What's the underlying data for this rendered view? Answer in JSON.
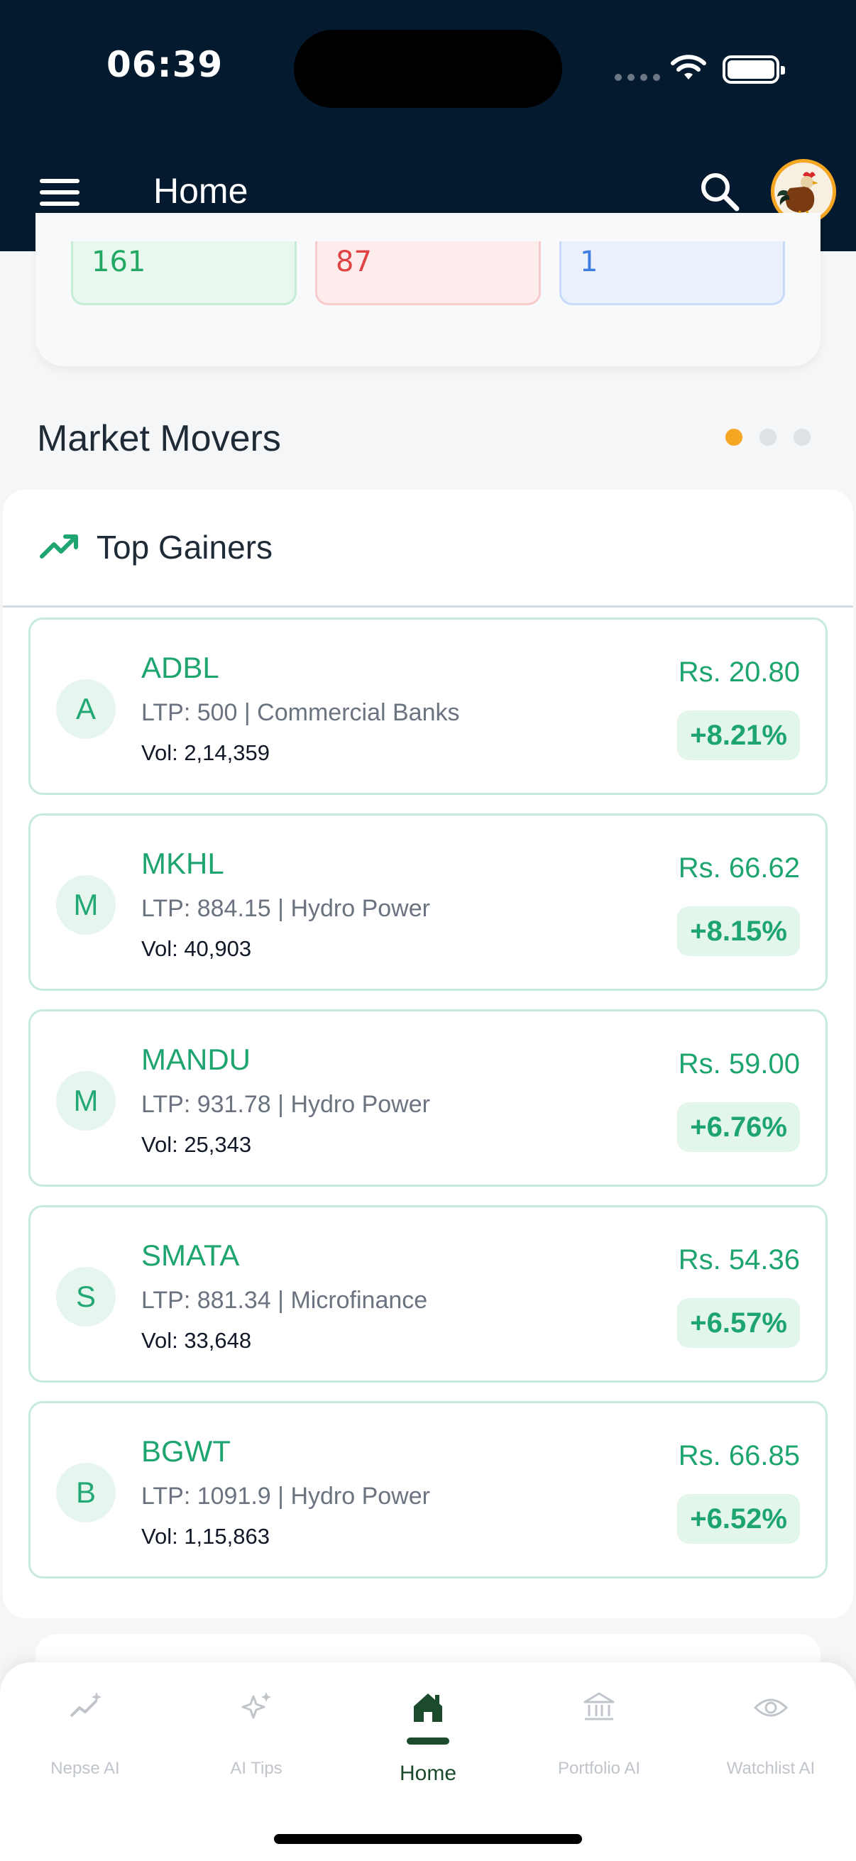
{
  "status_bar": {
    "time": "06:39"
  },
  "header": {
    "title": "Home"
  },
  "stats": {
    "advanced": "161",
    "declined": "87",
    "unchanged": "1"
  },
  "market_movers": {
    "title": "Market Movers",
    "panel_title": "Top Gainers",
    "stocks": [
      {
        "initial": "A",
        "symbol": "ADBL",
        "info": "LTP: 500 | Commercial Banks",
        "volume": "Vol: 2,14,359",
        "price": "Rs. 20.80",
        "change": "+8.21%"
      },
      {
        "initial": "M",
        "symbol": "MKHL",
        "info": "LTP: 884.15 | Hydro Power",
        "volume": "Vol: 40,903",
        "price": "Rs. 66.62",
        "change": "+8.15%"
      },
      {
        "initial": "M",
        "symbol": "MANDU",
        "info": "LTP: 931.78 | Hydro Power",
        "volume": "Vol: 25,343",
        "price": "Rs. 59.00",
        "change": "+6.76%"
      },
      {
        "initial": "S",
        "symbol": "SMATA",
        "info": "LTP: 881.34 | Microfinance",
        "volume": "Vol: 33,648",
        "price": "Rs. 54.36",
        "change": "+6.57%"
      },
      {
        "initial": "B",
        "symbol": "BGWT",
        "info": "LTP: 1091.9 | Hydro Power",
        "volume": "Vol: 1,15,863",
        "price": "Rs. 66.85",
        "change": "+6.52%"
      }
    ]
  },
  "tabs": [
    {
      "label": "Nepse AI",
      "icon": "chart-sparkle-icon"
    },
    {
      "label": "AI Tips",
      "icon": "sparkles-icon"
    },
    {
      "label": "Home",
      "icon": "home-icon"
    },
    {
      "label": "Portfolio AI",
      "icon": "bank-icon"
    },
    {
      "label": "Watchlist AI",
      "icon": "eye-icon"
    }
  ],
  "colors": {
    "header_bg": "#041a2e",
    "accent_green": "#1ea56f",
    "active_tab": "#1b4a2d",
    "pager_active": "#f5a623"
  }
}
